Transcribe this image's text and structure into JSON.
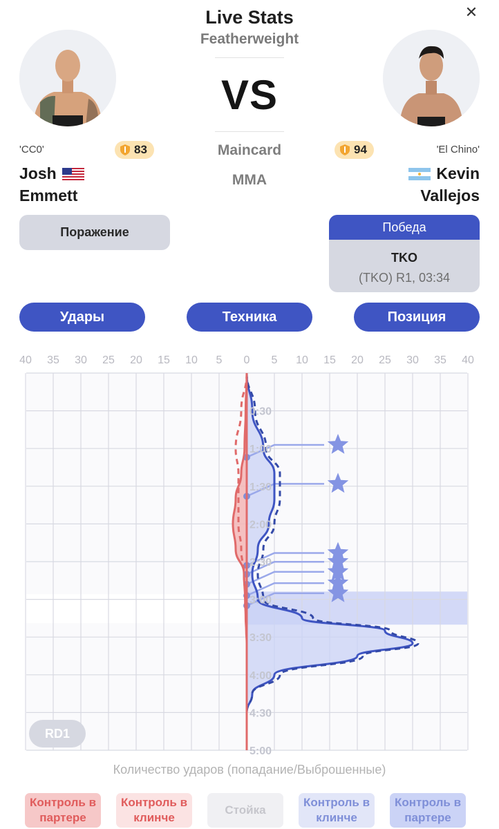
{
  "header": {
    "title": "Live Stats",
    "weight_class": "Featherweight",
    "vs_label": "VS",
    "card": "Maincard",
    "sport": "MMA",
    "close_label": "✕"
  },
  "fighters": {
    "left": {
      "nickname": "'CC0'",
      "rating": "83",
      "first_name": "Josh",
      "last_name": "Emmett",
      "flag": "us-flag",
      "result": "Поражение"
    },
    "right": {
      "nickname": "'El Chino'",
      "rating": "94",
      "first_name": "Kevin",
      "last_name": "Vallejos",
      "flag": "argentina-flag",
      "result": "Победа",
      "method": "TKO",
      "method_detail": "(TKO) R1, 03:34"
    }
  },
  "tabs": [
    "Удары",
    "Техника",
    "Позиция"
  ],
  "chart_data": {
    "type": "area",
    "orientation": "vertical-time",
    "x_ticks_left": [
      "40",
      "35",
      "30",
      "25",
      "20",
      "15",
      "10",
      "5",
      "0"
    ],
    "x_ticks_right": [
      "5",
      "10",
      "15",
      "20",
      "25",
      "30",
      "35",
      "40"
    ],
    "y_ticks": [
      "0:30",
      "1:00",
      "1:30",
      "2:00",
      "2:30",
      "3:00",
      "3:30",
      "4:00",
      "4:30",
      "5:00"
    ],
    "round_label": "RD1",
    "caption": "Количество ударов (попадание/Выброшенные)",
    "colors": {
      "left": "#e06a6a",
      "right": "#3f55c3",
      "right_fill": "#c9d1f5",
      "left_fill": "#f3b5b5"
    },
    "time_seconds": [
      0,
      30,
      60,
      80,
      100,
      120,
      140,
      160,
      180,
      195,
      205,
      215,
      225,
      240,
      255,
      270
    ],
    "left_landed": [
      0,
      0.2,
      0.4,
      1,
      2,
      2.5,
      2,
      0.5,
      0.3,
      0.2,
      0.1,
      0,
      0,
      0,
      0,
      0
    ],
    "left_thrown": [
      0,
      1,
      2,
      1.5,
      1.5,
      1.5,
      1,
      0.5,
      0.2,
      0,
      0,
      0,
      0,
      0,
      0,
      0
    ],
    "right_landed": [
      0,
      1,
      3,
      5,
      5,
      4,
      2,
      1,
      2,
      10,
      25,
      30,
      20,
      5,
      1,
      0
    ],
    "right_thrown": [
      0,
      1.5,
      3.5,
      6,
      6,
      5,
      3,
      2,
      3,
      12,
      26,
      31,
      21,
      6,
      1,
      0
    ],
    "knockdowns_right_seconds": [
      67,
      98,
      153,
      160,
      168,
      177,
      185
    ],
    "highlight_band_seconds": [
      176,
      199
    ]
  },
  "legend": [
    {
      "label": "Контроль в партере",
      "bg": "#f6c8c8",
      "color": "#e05c5c"
    },
    {
      "label": "Контроль в клинче",
      "bg": "#fbe3e3",
      "color": "#e05c5c"
    },
    {
      "label": "Стойка",
      "bg": "#f0f0f3",
      "color": "#c6c6cc"
    },
    {
      "label": "Контроль в клинче",
      "bg": "#e2e6f8",
      "color": "#7f8fd8"
    },
    {
      "label": "Контроль в партере",
      "bg": "#cbd3f6",
      "color": "#7f8fd8"
    }
  ]
}
